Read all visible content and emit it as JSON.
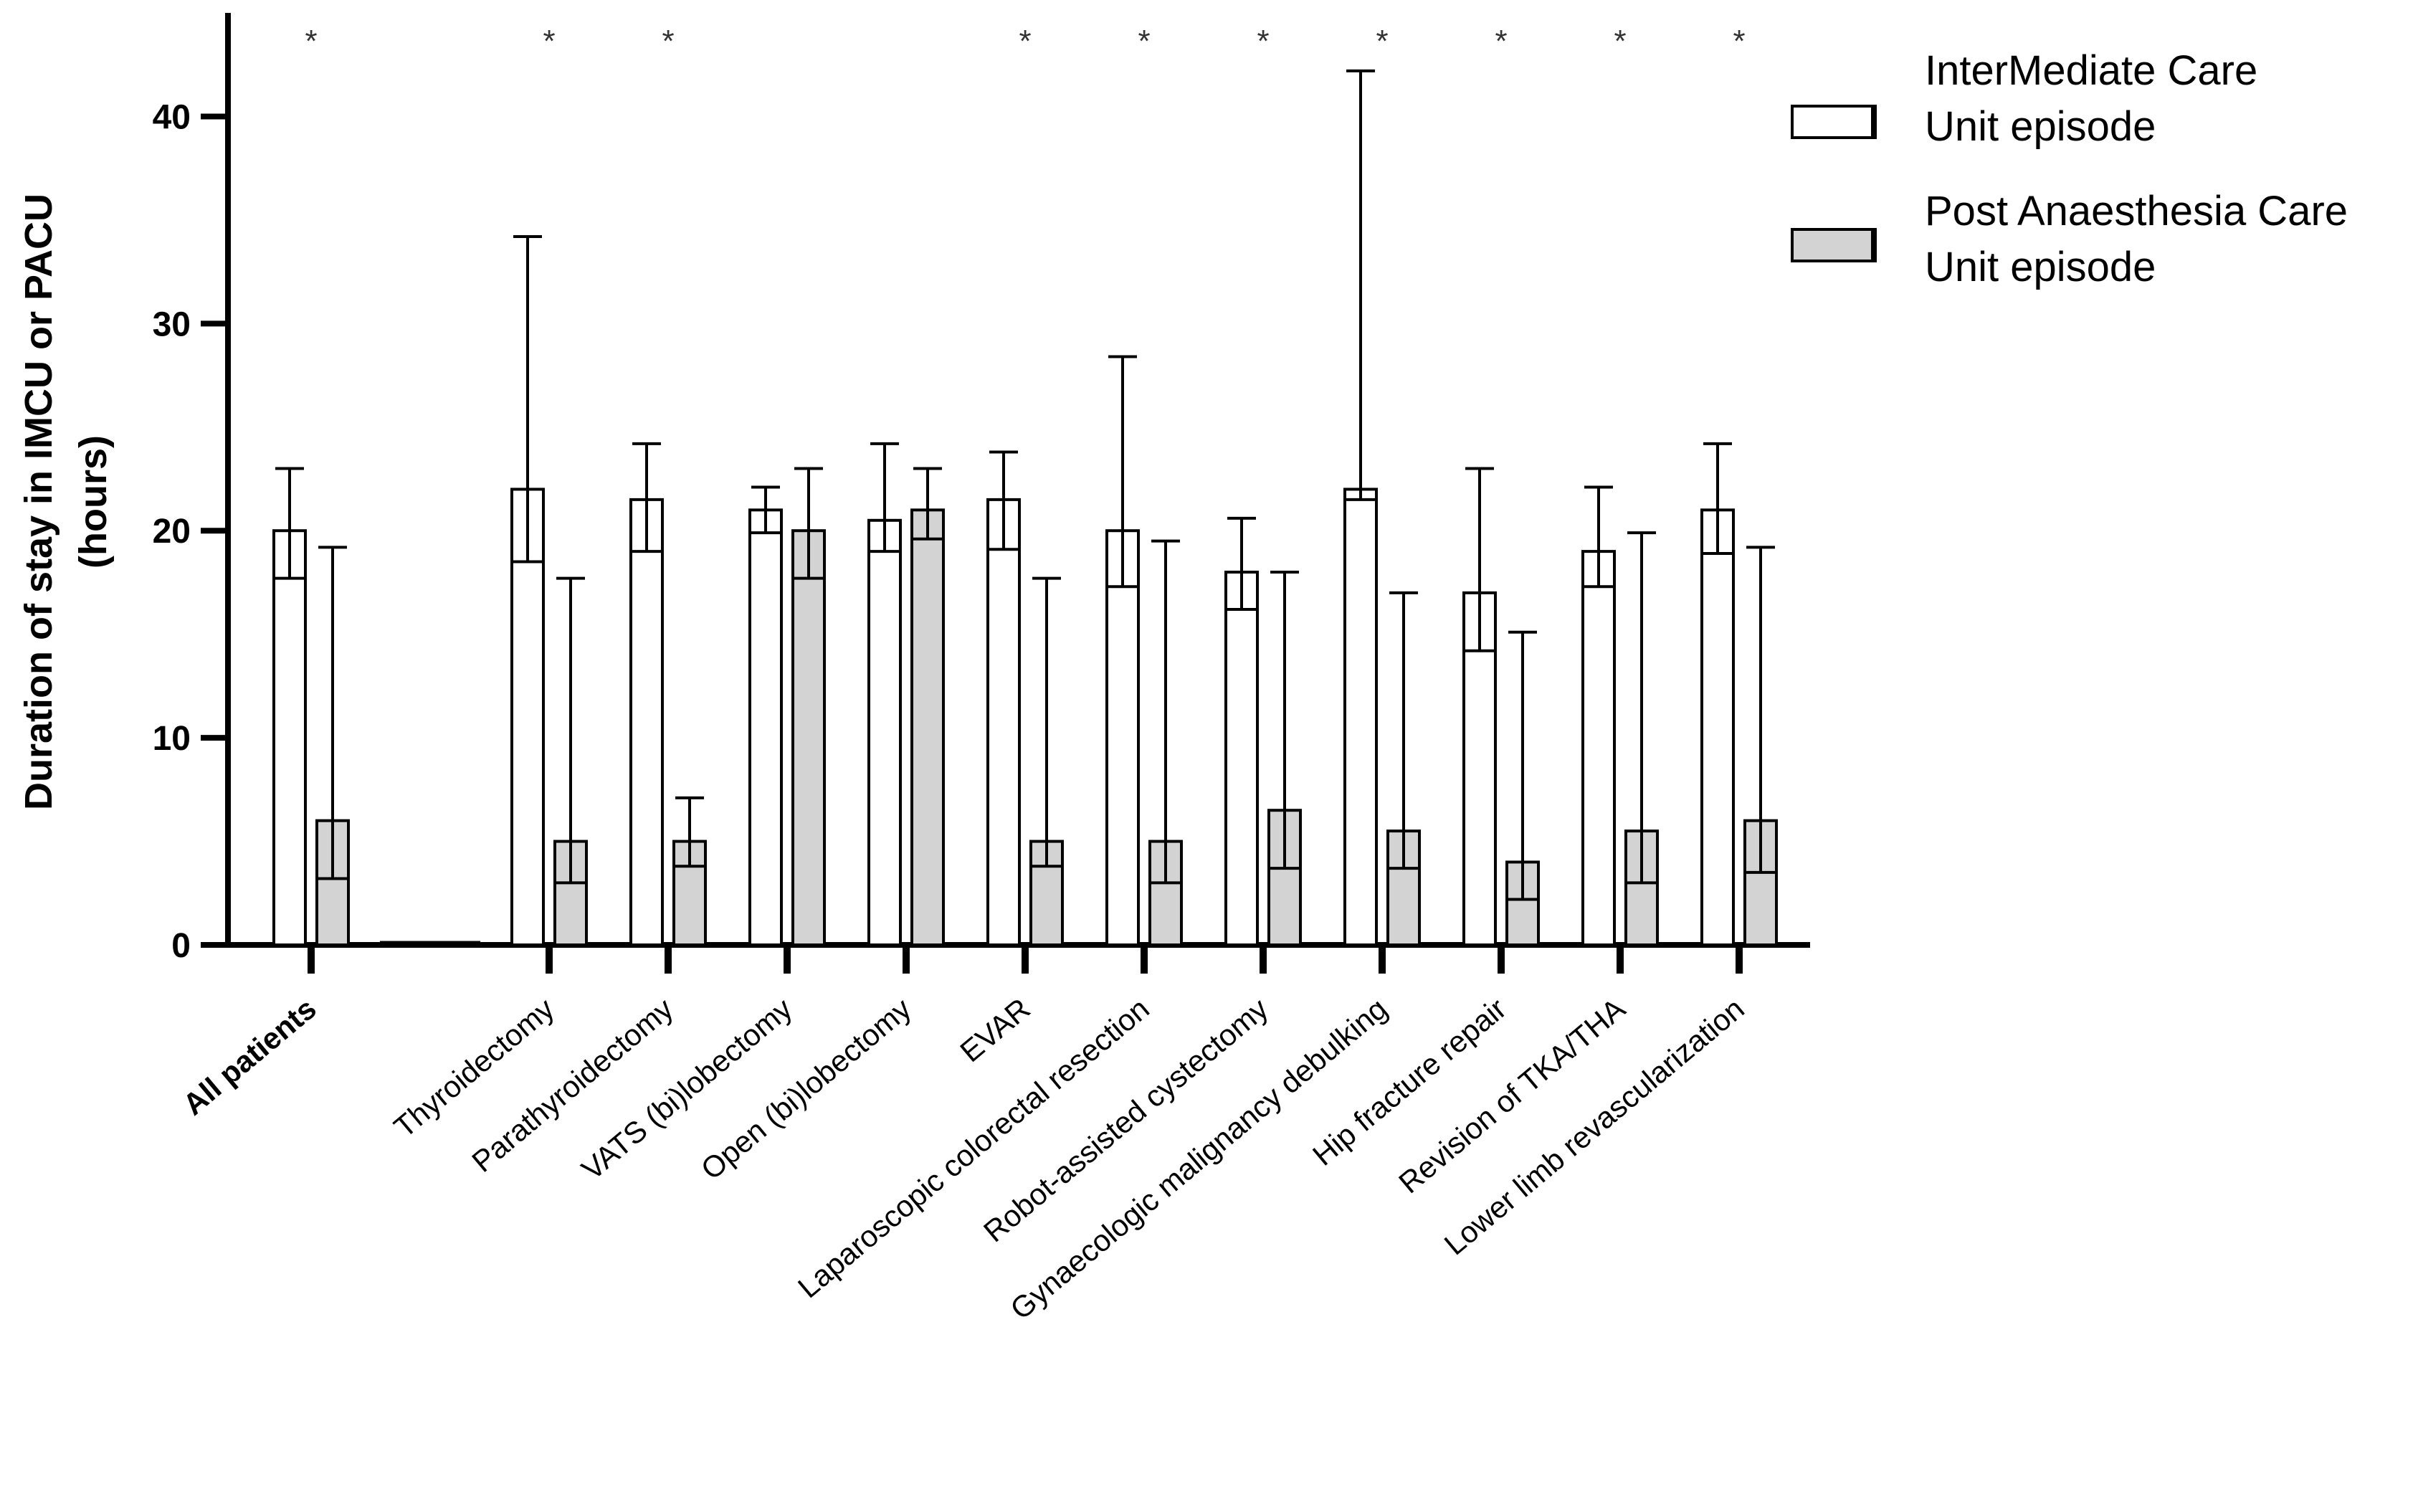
{
  "chart_data": {
    "type": "bar",
    "title": "",
    "xlabel": "",
    "ylabel_lines": [
      "Duration of stay in IMCU or PACU",
      "(hours)"
    ],
    "ylim": [
      0,
      45
    ],
    "yticks": [
      0,
      10,
      20,
      30,
      40
    ],
    "yticks_labels": [
      "0",
      "10",
      "20",
      "30",
      "40"
    ],
    "categories": [
      "All patients",
      "",
      "Thyroidectomy",
      "Parathyroidectomy",
      "VATS (bi)lobectomy",
      "Open (bi)lobectomy",
      "EVAR",
      "Laparoscopic colorectal resection",
      "Robot-assisted cystectomy",
      "Gynaecologic malignancy debulking",
      "Hip fracture repair",
      "Revision of TKA/THA",
      "Lower limb revascularization"
    ],
    "significant": [
      "*",
      "",
      "*",
      "*",
      "",
      "",
      "*",
      "*",
      "*",
      "*",
      "*",
      "*",
      "*"
    ],
    "series": [
      {
        "name": "InterMediate Care Unit episode",
        "legend_lines": [
          "InterMediate Care",
          "Unit episode"
        ],
        "color": "#ffffff",
        "values": [
          20.0,
          null,
          22.0,
          21.5,
          21.0,
          20.5,
          21.5,
          20.0,
          18.0,
          22.0,
          17.0,
          19.0,
          21.0
        ],
        "err_low": [
          17.7,
          null,
          18.5,
          19.0,
          19.9,
          19.0,
          19.1,
          17.3,
          16.2,
          21.5,
          14.2,
          17.3,
          18.9
        ],
        "err_high": [
          23.0,
          null,
          34.2,
          24.2,
          22.1,
          24.2,
          23.8,
          28.4,
          20.6,
          42.2,
          23.0,
          22.1,
          24.2
        ]
      },
      {
        "name": "Post Anaesthesia Care Unit episode",
        "legend_lines": [
          "Post Anaesthesia Care",
          "Unit episode"
        ],
        "color": "#d3d3d3",
        "values": [
          6.0,
          null,
          5.0,
          5.0,
          20.0,
          21.0,
          5.0,
          5.0,
          6.5,
          5.5,
          4.0,
          5.5,
          6.0
        ],
        "err_low": [
          3.2,
          null,
          3.0,
          3.8,
          17.7,
          19.6,
          3.8,
          3.0,
          3.7,
          3.7,
          2.2,
          3.0,
          3.5
        ],
        "err_high": [
          19.2,
          null,
          17.7,
          7.1,
          23.0,
          23.0,
          17.7,
          19.5,
          18.0,
          17.0,
          15.1,
          19.9,
          19.2
        ]
      }
    ],
    "legend_position": "top-right"
  }
}
